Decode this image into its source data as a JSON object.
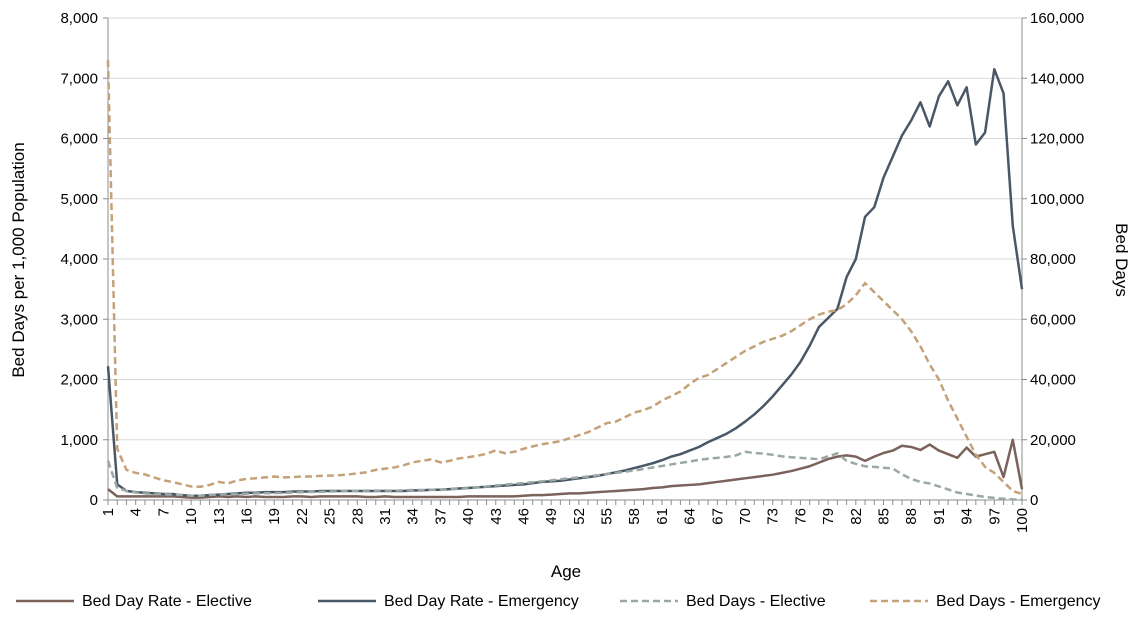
{
  "chart_data": {
    "type": "line",
    "xlabel": "Age",
    "ylabel": "Bed Days per 1,000 Population",
    "y2label": "Bed Days",
    "ylim": [
      0,
      8000
    ],
    "y2lim": [
      0,
      160000
    ],
    "yticks": [
      "0",
      "1,000",
      "2,000",
      "3,000",
      "4,000",
      "5,000",
      "6,000",
      "7,000",
      "8,000"
    ],
    "y2ticks": [
      "0",
      "20,000",
      "40,000",
      "60,000",
      "80,000",
      "100,000",
      "120,000",
      "140,000",
      "160,000"
    ],
    "x_tick_labels": [
      "1",
      "4",
      "7",
      "10",
      "13",
      "16",
      "19",
      "22",
      "25",
      "28",
      "31",
      "34",
      "37",
      "40",
      "43",
      "46",
      "49",
      "52",
      "55",
      "58",
      "61",
      "64",
      "67",
      "70",
      "73",
      "76",
      "79",
      "82",
      "85",
      "88",
      "91",
      "94",
      "97",
      "100"
    ],
    "x": [
      1,
      2,
      3,
      4,
      5,
      6,
      7,
      8,
      9,
      10,
      11,
      12,
      13,
      14,
      15,
      16,
      17,
      18,
      19,
      20,
      21,
      22,
      23,
      24,
      25,
      26,
      27,
      28,
      29,
      30,
      31,
      32,
      33,
      34,
      35,
      36,
      37,
      38,
      39,
      40,
      41,
      42,
      43,
      44,
      45,
      46,
      47,
      48,
      49,
      50,
      51,
      52,
      53,
      54,
      55,
      56,
      57,
      58,
      59,
      60,
      61,
      62,
      63,
      64,
      65,
      66,
      67,
      68,
      69,
      70,
      71,
      72,
      73,
      74,
      75,
      76,
      77,
      78,
      79,
      80,
      81,
      82,
      83,
      84,
      85,
      86,
      87,
      88,
      89,
      90,
      91,
      92,
      93,
      94,
      95,
      96,
      97,
      98,
      99,
      100
    ],
    "grid": true,
    "legend_position": "bottom",
    "series": [
      {
        "name": "Bed Day Rate - Elective",
        "axis": "left",
        "color": "#7b625a",
        "dash": false,
        "values": [
          180,
          60,
          60,
          60,
          60,
          60,
          60,
          60,
          50,
          40,
          40,
          50,
          60,
          50,
          60,
          50,
          60,
          50,
          50,
          50,
          60,
          60,
          50,
          60,
          60,
          60,
          60,
          60,
          50,
          50,
          60,
          50,
          50,
          50,
          50,
          50,
          50,
          50,
          50,
          60,
          60,
          60,
          60,
          60,
          60,
          70,
          80,
          80,
          90,
          100,
          110,
          110,
          120,
          130,
          140,
          150,
          160,
          170,
          180,
          200,
          210,
          230,
          240,
          250,
          260,
          280,
          300,
          320,
          340,
          360,
          380,
          400,
          420,
          450,
          480,
          520,
          560,
          620,
          680,
          720,
          740,
          720,
          650,
          720,
          780,
          820,
          900,
          880,
          830,
          920,
          820,
          760,
          700,
          870,
          720,
          760,
          800,
          380,
          1000,
          180
        ]
      },
      {
        "name": "Bed Day Rate - Emergency",
        "axis": "left",
        "color": "#4a5766",
        "dash": false,
        "values": [
          2220,
          260,
          150,
          130,
          120,
          110,
          100,
          100,
          80,
          70,
          70,
          80,
          90,
          100,
          110,
          120,
          120,
          130,
          130,
          130,
          140,
          140,
          140,
          150,
          150,
          150,
          150,
          150,
          150,
          150,
          150,
          150,
          150,
          160,
          160,
          170,
          170,
          180,
          190,
          200,
          210,
          220,
          230,
          240,
          250,
          260,
          280,
          300,
          310,
          320,
          340,
          360,
          380,
          400,
          430,
          460,
          490,
          530,
          570,
          610,
          660,
          720,
          760,
          820,
          880,
          960,
          1030,
          1100,
          1190,
          1300,
          1420,
          1560,
          1720,
          1900,
          2080,
          2290,
          2560,
          2870,
          3020,
          3170,
          3700,
          4000,
          4700,
          4860,
          5350,
          5700,
          6050,
          6300,
          6600,
          6200,
          6700,
          6950,
          6550,
          6850,
          5900,
          6100,
          7150,
          6750,
          4550,
          3500
        ]
      },
      {
        "name": "Bed Days - Elective",
        "axis": "right",
        "color": "#9aa8a4",
        "dash": true,
        "values": [
          13000,
          4000,
          3000,
          2500,
          2200,
          2000,
          1900,
          1800,
          1700,
          1400,
          1400,
          1700,
          1800,
          1900,
          2000,
          2100,
          2200,
          2300,
          2300,
          2400,
          2500,
          2600,
          2700,
          2700,
          2800,
          2900,
          3000,
          3000,
          3100,
          3100,
          3100,
          3100,
          3200,
          3300,
          3300,
          3400,
          3300,
          3600,
          3700,
          3900,
          4200,
          4500,
          4800,
          5100,
          5400,
          5600,
          5900,
          6200,
          6500,
          6900,
          7200,
          7500,
          7800,
          8200,
          8600,
          9000,
          9400,
          9800,
          10300,
          10800,
          11300,
          11800,
          12300,
          12800,
          13300,
          13700,
          14000,
          14300,
          14800,
          16000,
          15600,
          15400,
          15000,
          14500,
          14200,
          14000,
          13800,
          13500,
          14500,
          15500,
          13000,
          12000,
          11200,
          11000,
          10700,
          10500,
          8500,
          7000,
          6000,
          5500,
          4500,
          3500,
          2500,
          2000,
          1500,
          1000,
          700,
          400,
          200,
          100
        ]
      },
      {
        "name": "Bed Days - Emergency",
        "axis": "right",
        "color": "#c4a178",
        "dash": true,
        "values": [
          146000,
          17000,
          10000,
          9000,
          8500,
          7500,
          6500,
          6000,
          5200,
          4500,
          4400,
          5000,
          6000,
          5500,
          6500,
          7000,
          7200,
          7500,
          7800,
          7500,
          7600,
          7800,
          7800,
          8000,
          8100,
          8200,
          8500,
          8800,
          9200,
          10000,
          10400,
          10800,
          11500,
          12500,
          13000,
          13500,
          12500,
          13000,
          13800,
          14200,
          14700,
          15300,
          16500,
          15500,
          16000,
          17000,
          17800,
          18500,
          19000,
          19500,
          20500,
          21500,
          22500,
          24000,
          25500,
          26000,
          27500,
          29000,
          29800,
          31000,
          33000,
          34500,
          36000,
          38500,
          40500,
          41500,
          43500,
          45500,
          47500,
          49500,
          51000,
          52500,
          53500,
          54500,
          56000,
          58000,
          60000,
          61500,
          62500,
          63000,
          65000,
          68000,
          72000,
          69000,
          66000,
          63000,
          60000,
          56000,
          51000,
          45000,
          40000,
          33000,
          27000,
          21000,
          15000,
          11000,
          9000,
          6000,
          3000,
          2000
        ]
      }
    ]
  }
}
